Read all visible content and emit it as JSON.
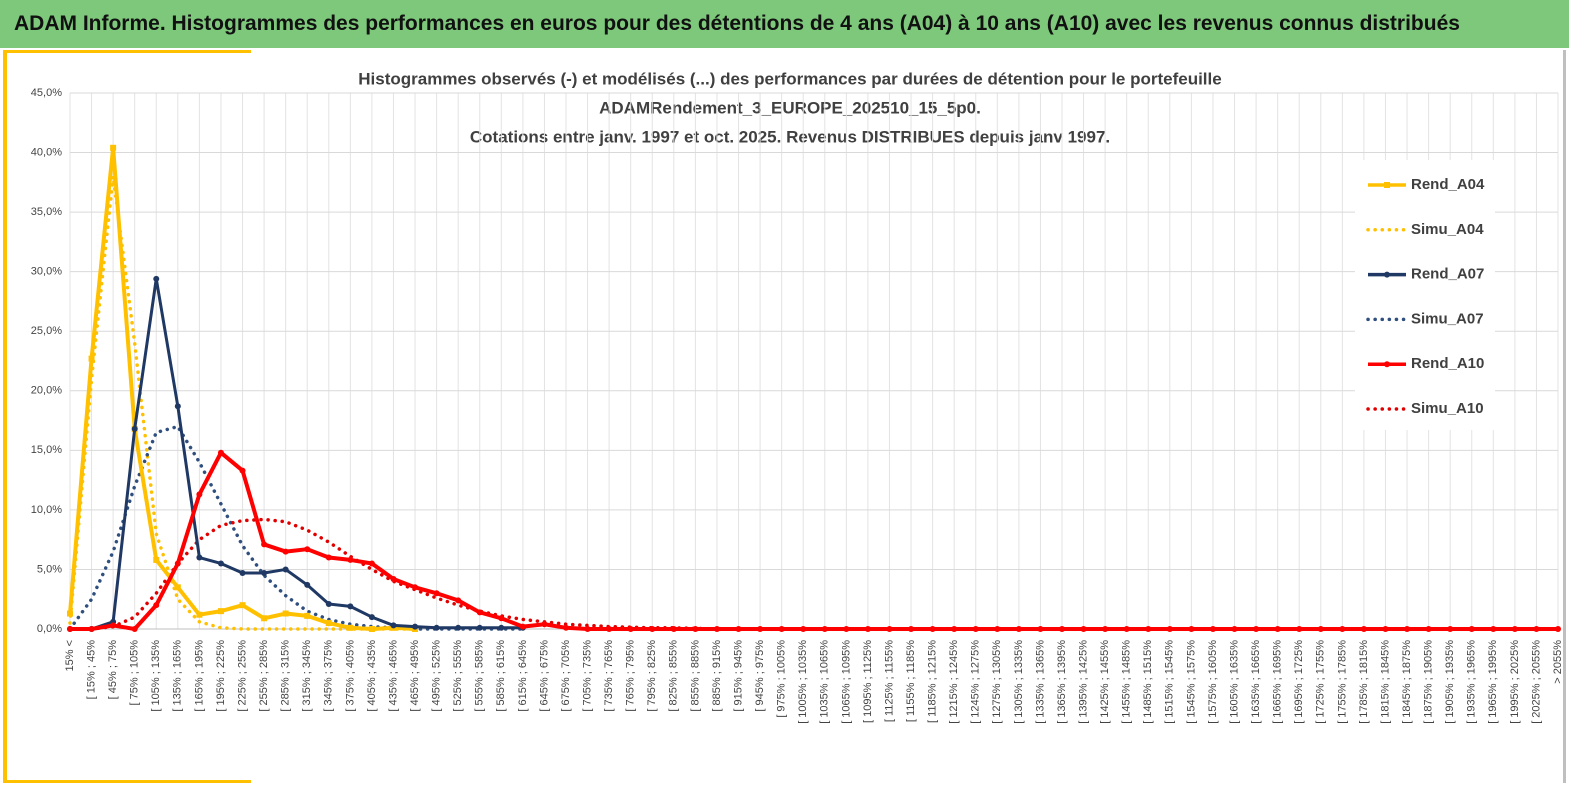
{
  "header": {
    "title": "ADAM Informe. Histogrammes des performances en euros pour des détentions de 4 ans (A04) à 10 ans (A10) avec les revenus connus distribués"
  },
  "chart_data": {
    "type": "line",
    "title": [
      "Histogrammes observés (-) et modélisés (...) des performances par durées de détention pour le portefeuille",
      "ADAMRendement_3_EUROPE_202510_15_5p0.",
      "Cotations entre janv. 1997 et oct. 2025. Revenus DISTRIBUES depuis janv 1997."
    ],
    "categories": [
      "15% <",
      "[ 15% ; 45%",
      "[ 45% ; 75%",
      "[ 75% ; 105%",
      "[ 105% ; 135%",
      "[ 135% ; 165%",
      "[ 165% ; 195%",
      "[ 195% ; 225%",
      "[ 225% ; 255%",
      "[ 255% ; 285%",
      "[ 285% ; 315%",
      "[ 315% ; 345%",
      "[ 345% ; 375%",
      "[ 375% ; 405%",
      "[ 405% ; 435%",
      "[ 435% ; 465%",
      "[ 465% ; 495%",
      "[ 495% ; 525%",
      "[ 525% ; 555%",
      "[ 555% ; 585%",
      "[ 585% ; 615%",
      "[ 615% ; 645%",
      "[ 645% ; 675%",
      "[ 675% ; 705%",
      "[ 705% ; 735%",
      "[ 735% ; 765%",
      "[ 765% ; 795%",
      "[ 795% ; 825%",
      "[ 825% ; 855%",
      "[ 855% ; 885%",
      "[ 885% ; 915%",
      "[ 915% ; 945%",
      "[ 945% ; 975%",
      "[ 975% ; 1005%",
      "[ 1005% ; 1035%",
      "[ 1035% ; 1065%",
      "[ 1065% ; 1095%",
      "[ 1095% ; 1125%",
      "[ 1125% ; 1155%",
      "[ 1155% ; 1185%",
      "[ 1185% ; 1215%",
      "[ 1215% ; 1245%",
      "[ 1245% ; 1275%",
      "[ 1275% ; 1305%",
      "[ 1305% ; 1335%",
      "[ 1335% ; 1365%",
      "[ 1365% ; 1395%",
      "[ 1395% ; 1425%",
      "[ 1425% ; 1455%",
      "[ 1455% ; 1485%",
      "[ 1485% ; 1515%",
      "[ 1515% ; 1545%",
      "[ 1545% ; 1575%",
      "[ 1575% ; 1605%",
      "[ 1605% ; 1635%",
      "[ 1635% ; 1665%",
      "[ 1665% ; 1695%",
      "[ 1695% ; 1725%",
      "[ 1725% ; 1755%",
      "[ 1755% ; 1785%",
      "[ 1785% ; 1815%",
      "[ 1815% ; 1845%",
      "[ 1845% ; 1875%",
      "[ 1875% ; 1905%",
      "[ 1905% ; 1935%",
      "[ 1935% ; 1965%",
      "[ 1965% ; 1995%",
      "[ 1995% ; 2025%",
      "[ 2025% ; 2055%",
      "> 2055%"
    ],
    "ylim": [
      0,
      45
    ],
    "yticks": [
      {
        "value": 0,
        "label": "0,0%"
      },
      {
        "value": 5,
        "label": "5,0%"
      },
      {
        "value": 10,
        "label": "10,0%"
      },
      {
        "value": 15,
        "label": "15,0%"
      },
      {
        "value": 20,
        "label": "20,0%"
      },
      {
        "value": 25,
        "label": "25,0%"
      },
      {
        "value": 30,
        "label": "30,0%"
      },
      {
        "value": 35,
        "label": "35,0%"
      },
      {
        "value": 40,
        "label": "40,0%"
      },
      {
        "value": 45,
        "label": "45,0%"
      }
    ],
    "grid": true,
    "legend": "right",
    "series": [
      {
        "name": "Rend_A04",
        "color": "#ffc000",
        "style": "solid",
        "values": [
          1.3,
          22.7,
          40.4,
          16.8,
          5.8,
          3.5,
          1.2,
          1.5,
          2.0,
          0.9,
          1.3,
          1.1,
          0.5,
          0.1,
          0,
          0.1,
          0,
          null,
          null,
          null,
          null,
          null,
          null,
          null,
          null,
          null,
          null,
          null,
          null,
          null,
          null,
          null,
          null,
          null,
          null,
          null,
          null,
          null,
          null,
          null,
          null,
          null,
          null,
          null,
          null,
          null,
          null,
          null,
          null,
          null,
          null,
          null,
          null,
          null,
          null,
          null,
          null,
          null,
          null,
          null,
          null,
          null,
          null,
          null,
          null,
          null,
          null,
          null,
          null,
          null
        ]
      },
      {
        "name": "Simu_A04",
        "color": "#ffc000",
        "style": "dotted",
        "values": [
          0.5,
          21,
          38,
          24,
          8,
          2.5,
          0.6,
          0.1,
          0,
          0,
          0,
          0,
          0,
          0,
          0,
          0,
          0,
          null,
          null,
          null,
          null,
          null,
          null,
          null,
          null,
          null,
          null,
          null,
          null,
          null,
          null,
          null,
          null,
          null,
          null,
          null,
          null,
          null,
          null,
          null,
          null,
          null,
          null,
          null,
          null,
          null,
          null,
          null,
          null,
          null,
          null,
          null,
          null,
          null,
          null,
          null,
          null,
          null,
          null,
          null,
          null,
          null,
          null,
          null,
          null,
          null,
          null,
          null,
          null,
          null
        ]
      },
      {
        "name": "Rend_A07",
        "color": "#1f3864",
        "style": "solid",
        "values": [
          0,
          0,
          0.6,
          16.8,
          29.4,
          18.7,
          6.0,
          5.5,
          4.7,
          4.7,
          5.0,
          3.7,
          2.1,
          1.9,
          1.0,
          0.3,
          0.2,
          0.1,
          0.1,
          0.1,
          0.1,
          0.1,
          null,
          null,
          null,
          null,
          null,
          null,
          null,
          null,
          null,
          null,
          null,
          null,
          null,
          null,
          null,
          null,
          null,
          null,
          null,
          null,
          null,
          null,
          null,
          null,
          null,
          null,
          null,
          null,
          null,
          null,
          null,
          null,
          null,
          null,
          null,
          null,
          null,
          null,
          null,
          null,
          null,
          null,
          null,
          null,
          null,
          null,
          null,
          null
        ]
      },
      {
        "name": "Simu_A07",
        "color": "#2f4f7f",
        "style": "dotted",
        "values": [
          0,
          2.5,
          6.5,
          12,
          16.5,
          17,
          14,
          10.5,
          7,
          4.5,
          2.8,
          1.5,
          0.8,
          0.4,
          0.2,
          0.1,
          0,
          0,
          0,
          0,
          0,
          0,
          null,
          null,
          null,
          null,
          null,
          null,
          null,
          null,
          null,
          null,
          null,
          null,
          null,
          null,
          null,
          null,
          null,
          null,
          null,
          null,
          null,
          null,
          null,
          null,
          null,
          null,
          null,
          null,
          null,
          null,
          null,
          null,
          null,
          null,
          null,
          null,
          null,
          null,
          null,
          null,
          null,
          null,
          null,
          null,
          null,
          null,
          null,
          null
        ]
      },
      {
        "name": "Rend_A10",
        "color": "#ff0000",
        "style": "solid",
        "values": [
          0,
          0,
          0.3,
          0,
          2.0,
          5.5,
          11.3,
          14.8,
          13.3,
          7.1,
          6.5,
          6.7,
          6.0,
          5.8,
          5.5,
          4.2,
          3.5,
          3.0,
          2.4,
          1.4,
          0.9,
          0.2,
          0.4,
          0.1,
          0,
          0,
          0,
          0,
          0,
          0,
          0,
          0,
          0,
          0,
          0,
          0,
          0,
          0,
          0,
          0,
          0,
          0,
          0,
          0,
          0,
          0,
          0,
          0,
          0,
          0,
          0,
          0,
          0,
          0,
          0,
          0,
          0,
          0,
          0,
          0,
          0,
          0,
          0,
          0,
          0,
          0,
          0,
          0,
          0,
          0
        ]
      },
      {
        "name": "Simu_A10",
        "color": "#e00000",
        "style": "dotted",
        "values": [
          0,
          0,
          0.2,
          1,
          3,
          5.5,
          7.5,
          8.7,
          9.1,
          9.2,
          9.0,
          8.3,
          7.3,
          6.1,
          5.0,
          4.0,
          3.3,
          2.6,
          2.0,
          1.5,
          1.1,
          0.8,
          0.6,
          0.4,
          0.3,
          0.2,
          0.15,
          0.1,
          0.1,
          0.05,
          0,
          0,
          0,
          0,
          0,
          0,
          0,
          0,
          0,
          0,
          0,
          0,
          0,
          0,
          0,
          0,
          0,
          0,
          0,
          0,
          0,
          0,
          0,
          0,
          0,
          0,
          0,
          0,
          0,
          0,
          0,
          0,
          0,
          0,
          0,
          0,
          0,
          0,
          0,
          0
        ]
      }
    ]
  }
}
